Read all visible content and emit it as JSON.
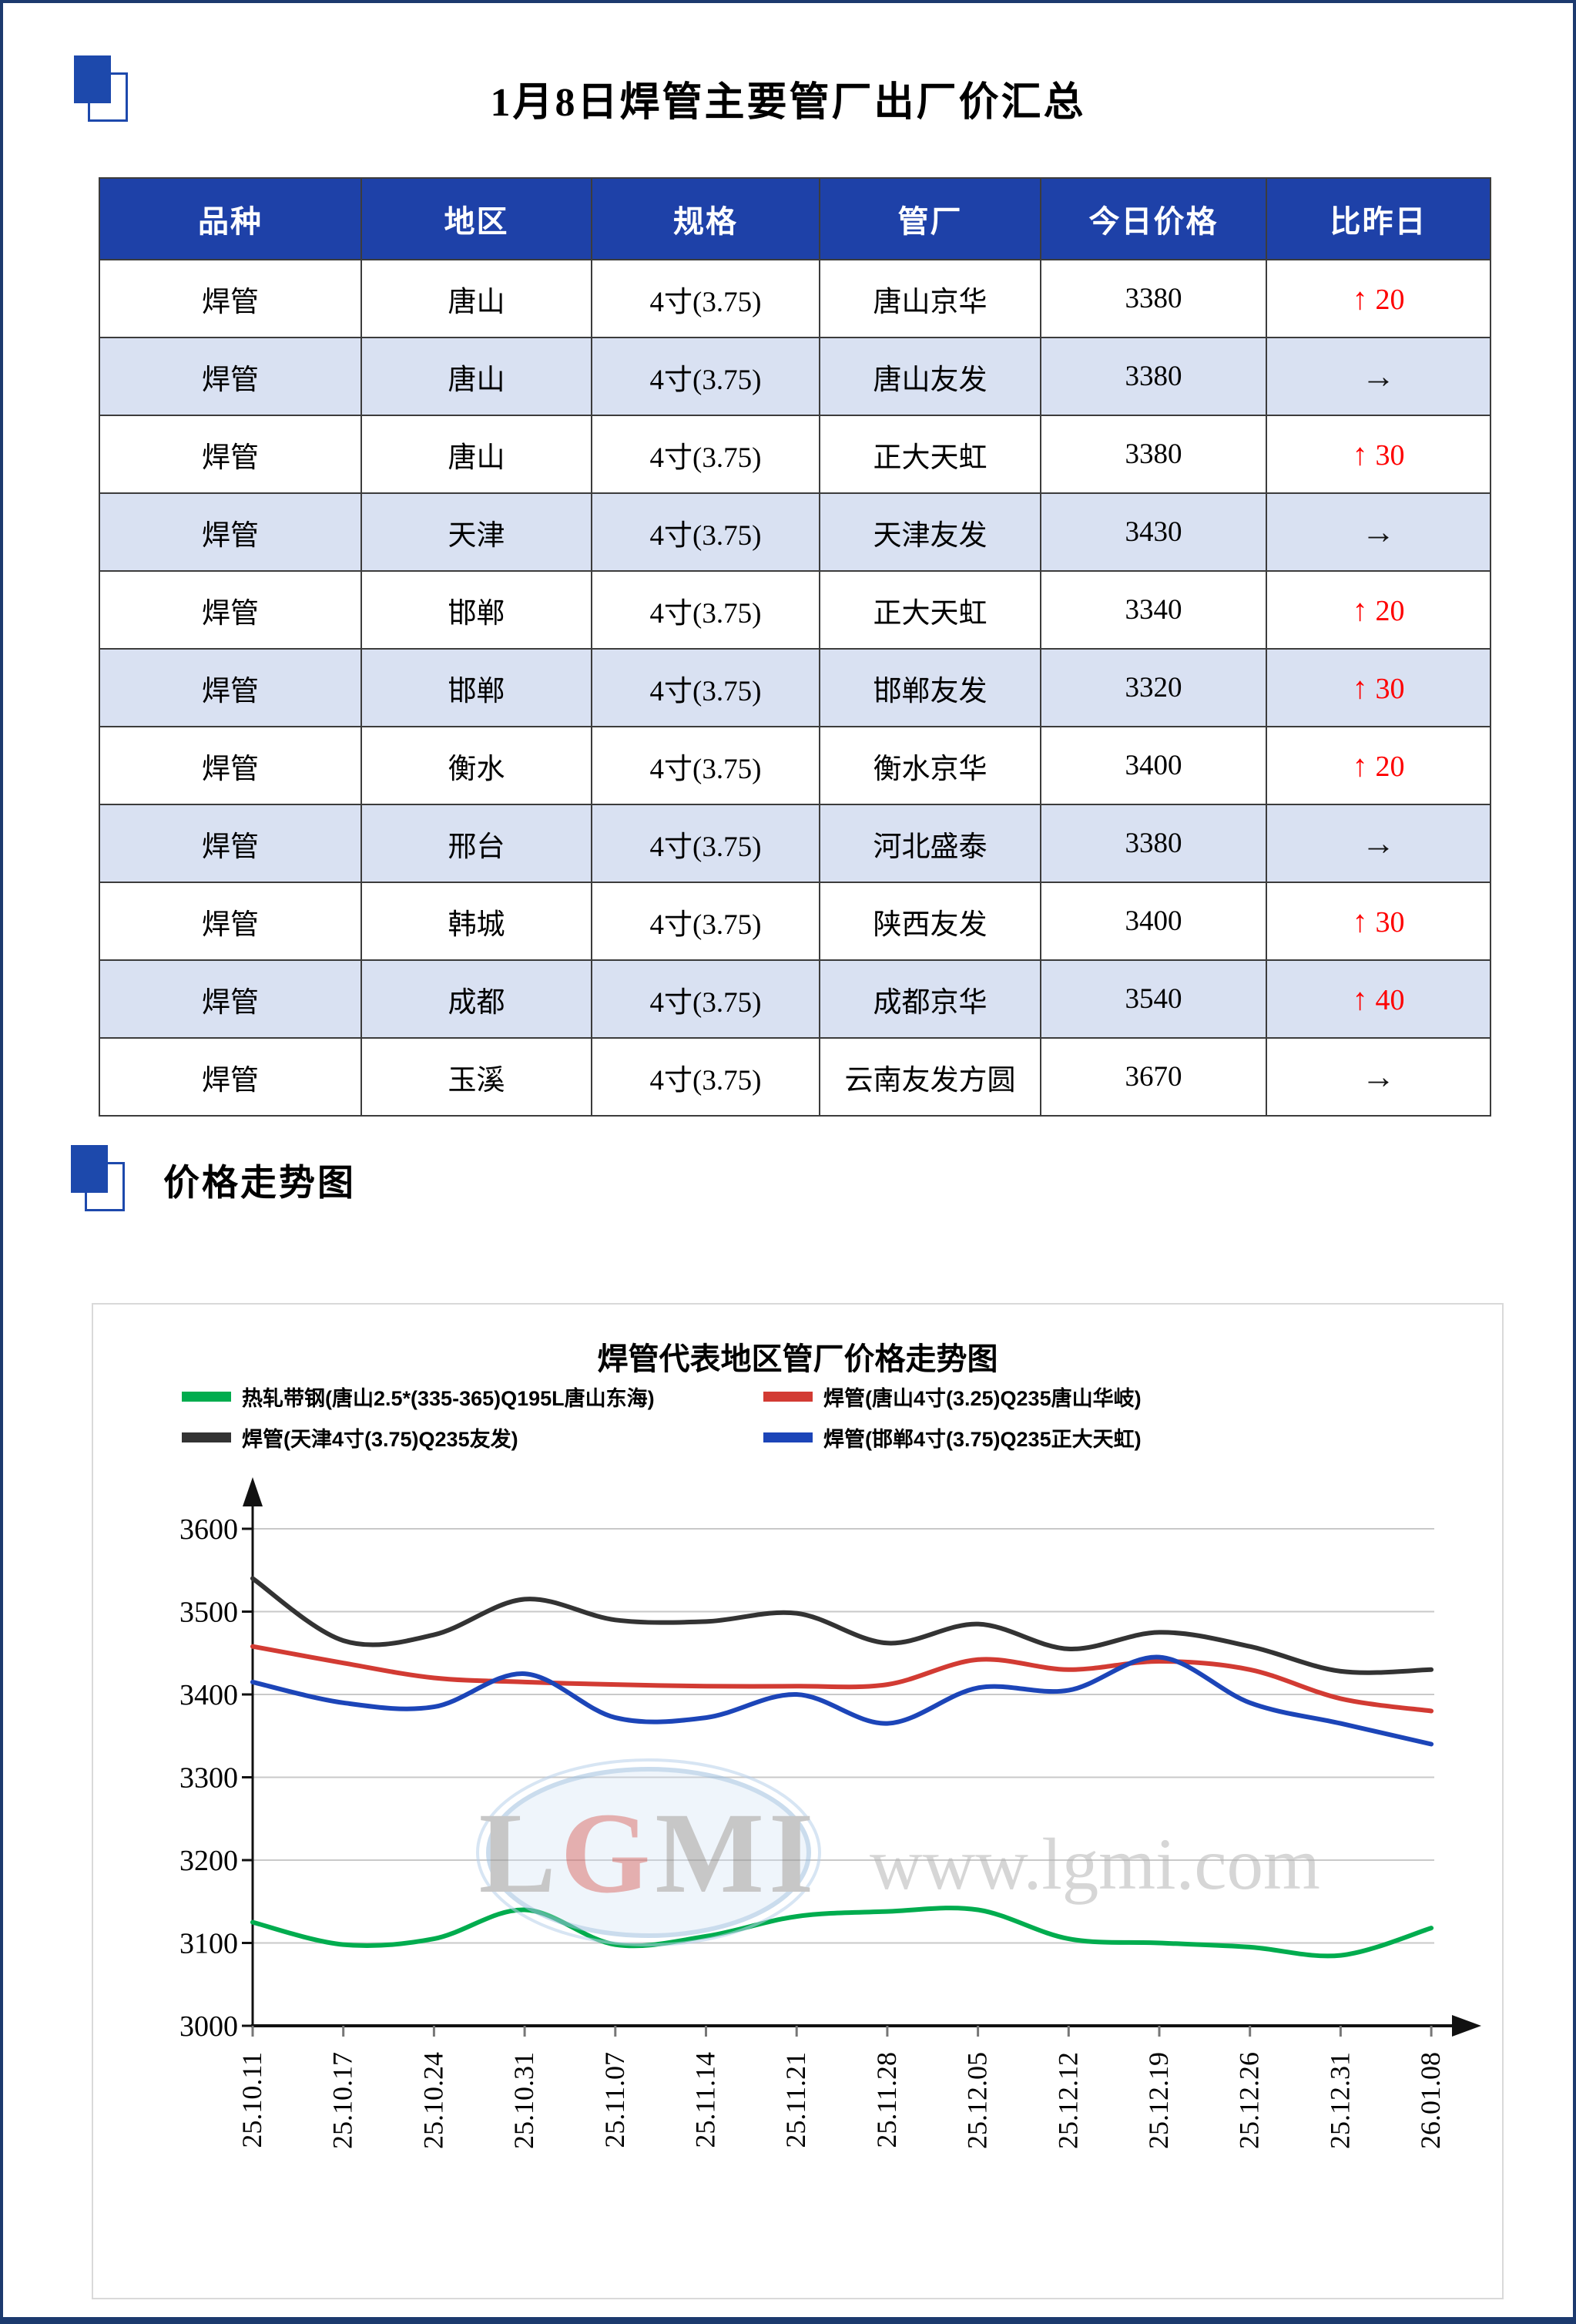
{
  "page": {
    "title": "1月8日焊管主要管厂出厂价汇总",
    "section_chart_title": "价格走势图"
  },
  "colors": {
    "frame": "#1c3a6e",
    "icon_blue": "#1d49ac",
    "table_header_bg": "#1e41a8",
    "row_alt_bg": "#d9e1f2",
    "up_red": "#fe0000",
    "flat_black": "#141414",
    "gridline": "#c9c9c9",
    "panel_border": "#d9d9d9",
    "watermark_gray": "#c2c2c2"
  },
  "icons": {
    "up_arrow": "↑",
    "flat_arrow": "→",
    "title_square": "blue-square-with-outline"
  },
  "table": {
    "headers": [
      "品种",
      "地区",
      "规格",
      "管厂",
      "今日价格",
      "比昨日"
    ],
    "rows": [
      {
        "cells": [
          "焊管",
          "唐山",
          "4寸(3.75)",
          "唐山京华",
          "3380"
        ],
        "change": {
          "dir": "up",
          "value": "20"
        }
      },
      {
        "cells": [
          "焊管",
          "唐山",
          "4寸(3.75)",
          "唐山友发",
          "3380"
        ],
        "change": {
          "dir": "flat",
          "value": ""
        }
      },
      {
        "cells": [
          "焊管",
          "唐山",
          "4寸(3.75)",
          "正大天虹",
          "3380"
        ],
        "change": {
          "dir": "up",
          "value": "30"
        }
      },
      {
        "cells": [
          "焊管",
          "天津",
          "4寸(3.75)",
          "天津友发",
          "3430"
        ],
        "change": {
          "dir": "flat",
          "value": ""
        }
      },
      {
        "cells": [
          "焊管",
          "邯郸",
          "4寸(3.75)",
          "正大天虹",
          "3340"
        ],
        "change": {
          "dir": "up",
          "value": "20"
        }
      },
      {
        "cells": [
          "焊管",
          "邯郸",
          "4寸(3.75)",
          "邯郸友发",
          "3320"
        ],
        "change": {
          "dir": "up",
          "value": "30"
        }
      },
      {
        "cells": [
          "焊管",
          "衡水",
          "4寸(3.75)",
          "衡水京华",
          "3400"
        ],
        "change": {
          "dir": "up",
          "value": "20"
        }
      },
      {
        "cells": [
          "焊管",
          "邢台",
          "4寸(3.75)",
          "河北盛泰",
          "3380"
        ],
        "change": {
          "dir": "flat",
          "value": ""
        }
      },
      {
        "cells": [
          "焊管",
          "韩城",
          "4寸(3.75)",
          "陕西友发",
          "3400"
        ],
        "change": {
          "dir": "up",
          "value": "30"
        }
      },
      {
        "cells": [
          "焊管",
          "成都",
          "4寸(3.75)",
          "成都京华",
          "3540"
        ],
        "change": {
          "dir": "up",
          "value": "40"
        }
      },
      {
        "cells": [
          "焊管",
          "玉溪",
          "4寸(3.75)",
          "云南友发方圆",
          "3670"
        ],
        "change": {
          "dir": "flat",
          "value": ""
        }
      }
    ]
  },
  "chart_data": {
    "type": "line",
    "title": "焊管代表地区管厂价格走势图",
    "x": [
      "25.10.11",
      "25.10.17",
      "25.10.24",
      "25.10.31",
      "25.11.07",
      "25.11.14",
      "25.11.21",
      "25.11.28",
      "25.12.05",
      "25.12.12",
      "25.12.19",
      "25.12.26",
      "25.12.31",
      "26.01.08"
    ],
    "ylim": [
      3000,
      3600
    ],
    "ytick_step": 100,
    "grid": true,
    "legend_position": "top",
    "watermark": {
      "logo": "LGMI",
      "url_text": "www.lgmi.com"
    },
    "series": [
      {
        "name": "热轧带钢(唐山2.5*(335-365)Q195L唐山东海)",
        "color": "#00ac4e",
        "values": [
          3125,
          3098,
          3105,
          3140,
          3098,
          3108,
          3132,
          3138,
          3140,
          3105,
          3100,
          3095,
          3085,
          3118
        ]
      },
      {
        "name": "焊管(唐山4寸(3.25)Q235唐山华岐)",
        "color": "#d23b33",
        "values": [
          3458,
          3438,
          3420,
          3415,
          3412,
          3410,
          3410,
          3412,
          3442,
          3430,
          3440,
          3430,
          3395,
          3380
        ]
      },
      {
        "name": "焊管(天津4寸(3.75)Q235友发)",
        "color": "#333333",
        "values": [
          3540,
          3465,
          3472,
          3515,
          3490,
          3488,
          3498,
          3462,
          3485,
          3455,
          3475,
          3458,
          3428,
          3430
        ]
      },
      {
        "name": "焊管(邯郸4寸(3.75)Q235正大天虹)",
        "color": "#1c45b8",
        "values": [
          3415,
          3390,
          3385,
          3425,
          3372,
          3372,
          3400,
          3365,
          3408,
          3405,
          3445,
          3390,
          3365,
          3340
        ]
      }
    ]
  }
}
